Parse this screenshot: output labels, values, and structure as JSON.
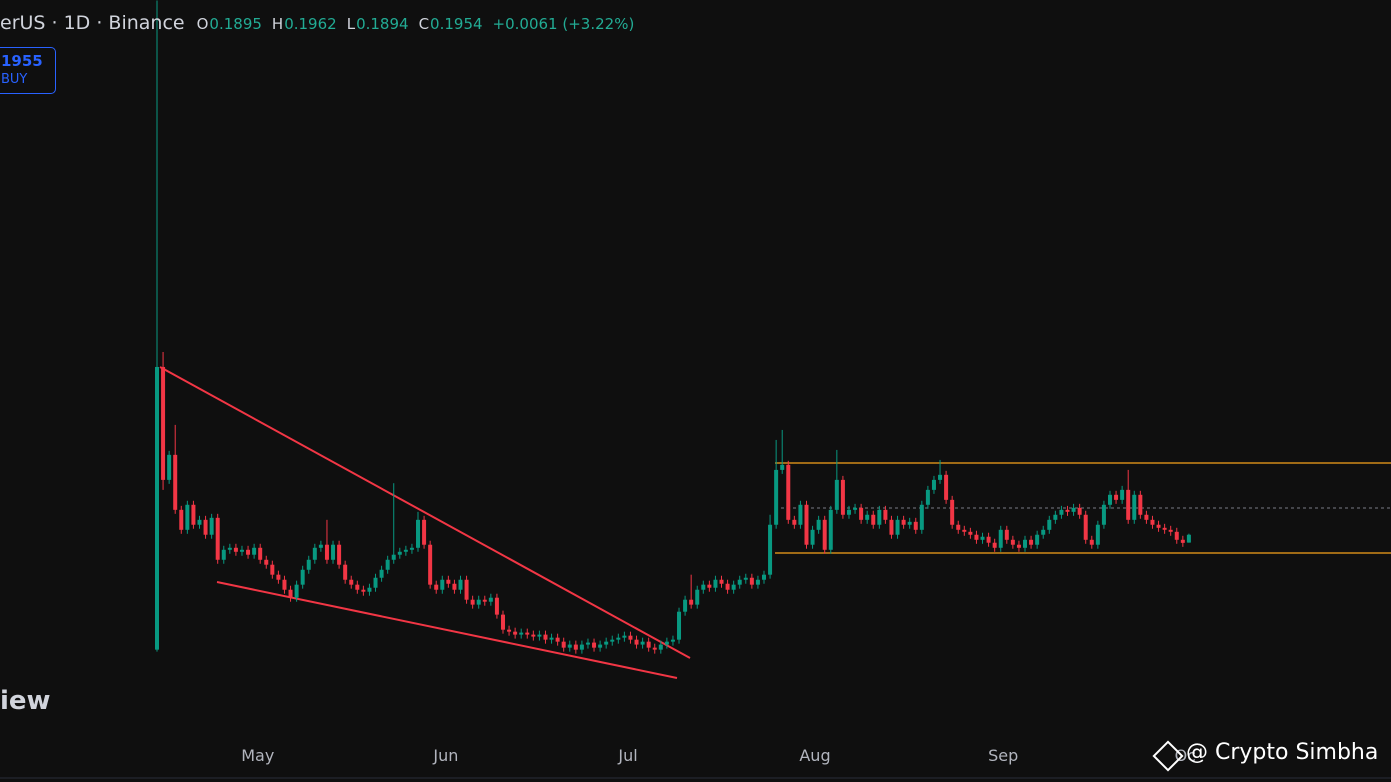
{
  "chart_data": {
    "type": "candlestick",
    "symbol": "erUS · 1D · Binance",
    "ohlc_labels": [
      "O",
      "H",
      "L",
      "C"
    ],
    "change": "+0.0061 (+3.22%)",
    "order_box": {
      "price": "1955",
      "side": "BUY"
    },
    "watermarks": [
      "iew",
      "@ Crypto Simbha"
    ],
    "up_color": "#089981",
    "down_color": "#f23645",
    "ylim": [
      0.045,
      0.597
    ],
    "xticks": [
      {
        "value": 16.6,
        "label": "May"
      },
      {
        "value": 47.6,
        "label": "Jun"
      },
      {
        "value": 77.6,
        "label": "Jul"
      },
      {
        "value": 108.4,
        "label": "Aug"
      },
      {
        "value": 139.4,
        "label": "Sep"
      },
      {
        "value": 169.4,
        "label": "Oc"
      }
    ],
    "open": [
      0.1091,
      0.3214,
      0.2366,
      0.2554,
      0.2141,
      0.1991,
      0.2179,
      0.2029,
      0.2066,
      0.1954,
      0.2081,
      0.1766,
      0.1841,
      0.1856,
      0.1826,
      0.1841,
      0.1804,
      0.1856,
      0.1766,
      0.1729,
      0.1654,
      0.1616,
      0.1541,
      0.1481,
      0.1579,
      0.1691,
      0.1766,
      0.1856,
      0.1879,
      0.1766,
      0.1879,
      0.1729,
      0.1616,
      0.1579,
      0.1541,
      0.1526,
      0.1556,
      0.1631,
      0.1691,
      0.1766,
      0.1804,
      0.1826,
      0.1841,
      0.1856,
      0.2066,
      0.1879,
      0.1579,
      0.1541,
      0.1616,
      0.1586,
      0.1541,
      0.1616,
      0.1466,
      0.1429,
      0.1466,
      0.1451,
      0.1481,
      0.1354,
      0.1241,
      0.1226,
      0.1204,
      0.1219,
      0.1204,
      0.1189,
      0.1204,
      0.1166,
      0.1181,
      0.1151,
      0.1106,
      0.1129,
      0.1091,
      0.1129,
      0.1144,
      0.1106,
      0.1129,
      0.1151,
      0.1166,
      0.1181,
      0.1196,
      0.1166,
      0.1129,
      0.1151,
      0.1106,
      0.1091,
      0.1129,
      0.1151,
      0.1166,
      0.1376,
      0.1466,
      0.1429,
      0.1541,
      0.1579,
      0.1556,
      0.1616,
      0.1586,
      0.1541,
      0.1579,
      0.1616,
      0.1631,
      0.1579,
      0.1616,
      0.1654,
      0.2029,
      0.2441,
      0.2479,
      0.2066,
      0.2029,
      0.2179,
      0.1879,
      0.1991,
      0.2066,
      0.1841,
      0.2141,
      0.2366,
      0.2104,
      0.2141,
      0.2156,
      0.2066,
      0.2104,
      0.2029,
      0.2141,
      0.2066,
      0.1954,
      0.2066,
      0.2029,
      0.2051,
      0.1991,
      0.2179,
      0.2291,
      0.2366,
      0.2404,
      0.2216,
      0.2029,
      0.1991,
      0.1976,
      0.1954,
      0.1916,
      0.1939,
      0.1894,
      0.1856,
      0.1991,
      0.1916,
      0.1879,
      0.1856,
      0.1916,
      0.1879,
      0.1954,
      0.1991,
      0.2066,
      0.2104,
      0.2141,
      0.2126,
      0.2156,
      0.2104,
      0.1916,
      0.1879,
      0.2029,
      0.2179,
      0.2254,
      0.2216,
      0.2291,
      0.2066,
      0.2254,
      0.2104,
      0.2066,
      0.2029,
      0.2006,
      0.1991,
      0.1976,
      0.1916,
      0.1895
    ],
    "high": [
      0.5966,
      0.3326,
      0.2584,
      0.2779,
      0.2171,
      0.2209,
      0.2209,
      0.2096,
      0.2096,
      0.2111,
      0.2111,
      0.1871,
      0.1886,
      0.1886,
      0.1871,
      0.1871,
      0.1886,
      0.1886,
      0.1796,
      0.1759,
      0.1684,
      0.1646,
      0.1571,
      0.1609,
      0.1721,
      0.1796,
      0.1886,
      0.1909,
      0.2066,
      0.1909,
      0.1909,
      0.1759,
      0.1646,
      0.1609,
      0.1571,
      0.1586,
      0.1661,
      0.1721,
      0.1796,
      0.2341,
      0.1856,
      0.1871,
      0.1886,
      0.2126,
      0.2096,
      0.1909,
      0.1609,
      0.1646,
      0.1646,
      0.1616,
      0.1646,
      0.1646,
      0.1496,
      0.1496,
      0.1496,
      0.1511,
      0.1511,
      0.1384,
      0.1271,
      0.1256,
      0.1249,
      0.1249,
      0.1234,
      0.1234,
      0.1234,
      0.1211,
      0.1211,
      0.1181,
      0.1159,
      0.1159,
      0.1159,
      0.1174,
      0.1174,
      0.1159,
      0.1181,
      0.1196,
      0.1211,
      0.1226,
      0.1226,
      0.1196,
      0.1181,
      0.1181,
      0.1136,
      0.1159,
      0.1181,
      0.1196,
      0.1406,
      0.1496,
      0.1654,
      0.1571,
      0.1609,
      0.1609,
      0.1646,
      0.1646,
      0.1616,
      0.1609,
      0.1646,
      0.1661,
      0.1661,
      0.1646,
      0.1684,
      0.2104,
      0.2666,
      0.2741,
      0.2509,
      0.2096,
      0.2209,
      0.2209,
      0.2021,
      0.2096,
      0.2096,
      0.2171,
      0.2591,
      0.2396,
      0.2171,
      0.2186,
      0.2186,
      0.2134,
      0.2134,
      0.2171,
      0.2171,
      0.2096,
      0.2096,
      0.2096,
      0.2081,
      0.2081,
      0.2209,
      0.2321,
      0.2396,
      0.2516,
      0.2434,
      0.2246,
      0.2059,
      0.2021,
      0.2006,
      0.1984,
      0.1969,
      0.1969,
      0.1924,
      0.2021,
      0.2021,
      0.1946,
      0.1909,
      0.1946,
      0.1946,
      0.1984,
      0.2021,
      0.2096,
      0.2134,
      0.2171,
      0.2171,
      0.2186,
      0.2186,
      0.2134,
      0.1946,
      0.2059,
      0.2209,
      0.2284,
      0.2284,
      0.2321,
      0.2441,
      0.2284,
      0.2284,
      0.2134,
      0.2096,
      0.2059,
      0.2036,
      0.2021,
      0.2006,
      0.1946,
      0.1962
    ],
    "low": [
      0.1076,
      0.2291,
      0.2336,
      0.2111,
      0.1961,
      0.1961,
      0.1999,
      0.1999,
      0.1924,
      0.1924,
      0.1736,
      0.1736,
      0.1811,
      0.1796,
      0.1796,
      0.1774,
      0.1774,
      0.1736,
      0.1699,
      0.1624,
      0.1586,
      0.1511,
      0.1451,
      0.1451,
      0.1549,
      0.1661,
      0.1736,
      0.1826,
      0.1736,
      0.1736,
      0.1699,
      0.1586,
      0.1549,
      0.1511,
      0.1496,
      0.1496,
      0.1526,
      0.1601,
      0.1661,
      0.1736,
      0.1774,
      0.1796,
      0.1811,
      0.1826,
      0.1849,
      0.1549,
      0.1511,
      0.1511,
      0.1556,
      0.1511,
      0.1511,
      0.1436,
      0.1399,
      0.1399,
      0.1421,
      0.1421,
      0.1324,
      0.1211,
      0.1196,
      0.1174,
      0.1174,
      0.1174,
      0.1159,
      0.1159,
      0.1136,
      0.1136,
      0.1121,
      0.1076,
      0.1076,
      0.1061,
      0.1061,
      0.1099,
      0.1076,
      0.1076,
      0.1099,
      0.1121,
      0.1136,
      0.1151,
      0.1136,
      0.1099,
      0.1099,
      0.1076,
      0.1061,
      0.1061,
      0.1099,
      0.1121,
      0.1136,
      0.1346,
      0.1399,
      0.1399,
      0.1511,
      0.1526,
      0.1526,
      0.1556,
      0.1511,
      0.1511,
      0.1549,
      0.1586,
      0.1549,
      0.1549,
      0.1586,
      0.1624,
      0.1999,
      0.2411,
      0.2036,
      0.1999,
      0.1999,
      0.1849,
      0.1849,
      0.1961,
      0.1811,
      0.1811,
      0.2111,
      0.2074,
      0.2074,
      0.2111,
      0.2036,
      0.2036,
      0.1999,
      0.1999,
      0.2036,
      0.1924,
      0.1924,
      0.1999,
      0.1999,
      0.1961,
      0.1961,
      0.2149,
      0.2261,
      0.2336,
      0.2186,
      0.1999,
      0.1961,
      0.1946,
      0.1924,
      0.1886,
      0.1886,
      0.1864,
      0.1826,
      0.1826,
      0.1886,
      0.1849,
      0.1826,
      0.1826,
      0.1849,
      0.1849,
      0.1924,
      0.1961,
      0.2036,
      0.2074,
      0.2096,
      0.2096,
      0.2074,
      0.1886,
      0.1849,
      0.1849,
      0.1999,
      0.2149,
      0.2186,
      0.2186,
      0.2036,
      0.2036,
      0.2074,
      0.2036,
      0.1999,
      0.1976,
      0.1961,
      0.1946,
      0.1886,
      0.1863,
      0.1894
    ],
    "close": [
      0.3214,
      0.2366,
      0.2554,
      0.2141,
      0.1991,
      0.2179,
      0.2029,
      0.2066,
      0.1954,
      0.2081,
      0.1766,
      0.1841,
      0.1856,
      0.1826,
      0.1841,
      0.1804,
      0.1856,
      0.1766,
      0.1729,
      0.1654,
      0.1616,
      0.1541,
      0.1481,
      0.1579,
      0.1691,
      0.1766,
      0.1856,
      0.1879,
      0.1766,
      0.1879,
      0.1729,
      0.1616,
      0.1579,
      0.1541,
      0.1526,
      0.1556,
      0.1631,
      0.1691,
      0.1766,
      0.1804,
      0.1826,
      0.1841,
      0.1856,
      0.2066,
      0.1879,
      0.1579,
      0.1541,
      0.1616,
      0.1586,
      0.1541,
      0.1616,
      0.1466,
      0.1429,
      0.1466,
      0.1451,
      0.1481,
      0.1354,
      0.1241,
      0.1226,
      0.1204,
      0.1219,
      0.1204,
      0.1189,
      0.1204,
      0.1166,
      0.1181,
      0.1151,
      0.1106,
      0.1129,
      0.1091,
      0.1129,
      0.1144,
      0.1106,
      0.1129,
      0.1151,
      0.1166,
      0.1181,
      0.1196,
      0.1166,
      0.1129,
      0.1151,
      0.1106,
      0.1091,
      0.1129,
      0.1151,
      0.1166,
      0.1376,
      0.1466,
      0.1429,
      0.1541,
      0.1579,
      0.1556,
      0.1616,
      0.1586,
      0.1541,
      0.1579,
      0.1616,
      0.1631,
      0.1579,
      0.1616,
      0.1654,
      0.2029,
      0.2441,
      0.2479,
      0.2066,
      0.2029,
      0.2179,
      0.1879,
      0.1991,
      0.2066,
      0.1841,
      0.2141,
      0.2366,
      0.2104,
      0.2141,
      0.2156,
      0.2066,
      0.2104,
      0.2029,
      0.2141,
      0.2066,
      0.1954,
      0.2066,
      0.2029,
      0.2051,
      0.1991,
      0.2179,
      0.2291,
      0.2366,
      0.2404,
      0.2216,
      0.2029,
      0.1991,
      0.1976,
      0.1954,
      0.1916,
      0.1939,
      0.1894,
      0.1856,
      0.1991,
      0.1916,
      0.1879,
      0.1856,
      0.1916,
      0.1879,
      0.1954,
      0.1991,
      0.2066,
      0.2104,
      0.2141,
      0.2126,
      0.2156,
      0.2104,
      0.1916,
      0.1879,
      0.2029,
      0.2179,
      0.2254,
      0.2216,
      0.2291,
      0.2066,
      0.2254,
      0.2104,
      0.2066,
      0.2029,
      0.2006,
      0.1991,
      0.1976,
      0.1916,
      0.1893,
      0.1954
    ]
  }
}
